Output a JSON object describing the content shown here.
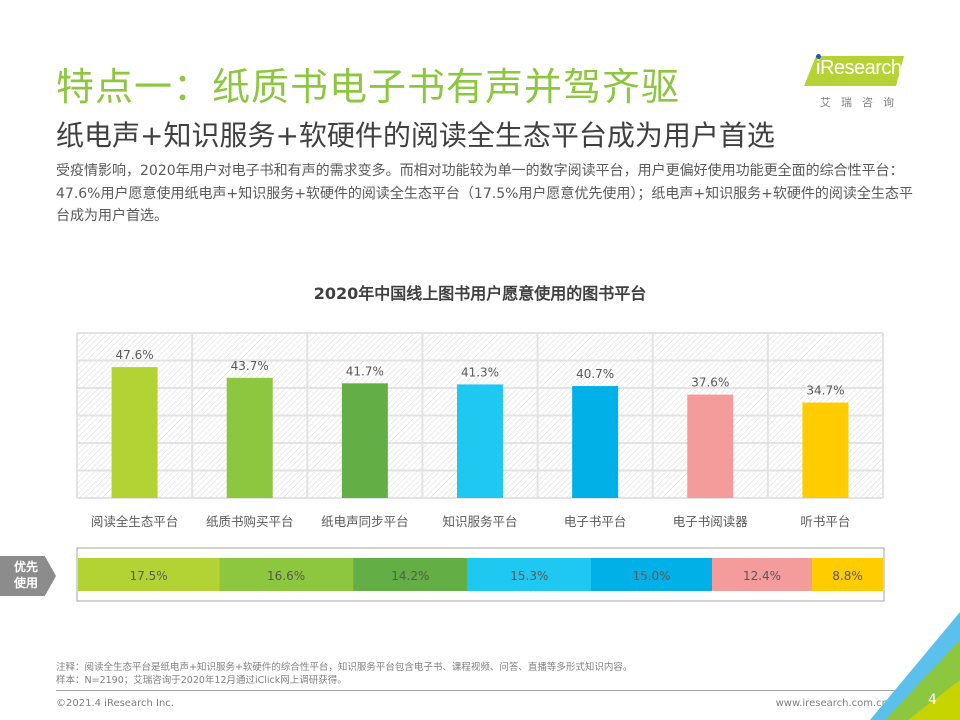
{
  "header": {
    "title": "特点一：纸质书电子书有声并驾齐驱",
    "subtitle": "纸电声+知识服务+软硬件的阅读全生态平台成为用户首选",
    "description": "受疫情影响，2020年用户对电子书和有声的需求变多。而相对功能较为单一的数字阅读平台，用户更偏好使用功能更全面的综合性平台：47.6%用户愿意使用纸电声+知识服务+软硬件的阅读全生态平台（17.5%用户愿意优先使用）；纸电声+知识服务+软硬件的阅读全生态平台成为用户首选。"
  },
  "logo": {
    "brand": "iResearch",
    "cn": "艾瑞咨询"
  },
  "priority_tag": "优先使用",
  "chart_data": [
    {
      "type": "bar",
      "title": "2020年中国线上图书用户愿意使用的图书平台",
      "categories": [
        "阅读全生态平台",
        "纸质书购买平台",
        "纸电声同步平台",
        "知识服务平台",
        "电子书平台",
        "电子书阅读器",
        "听书平台"
      ],
      "values": [
        47.6,
        43.7,
        41.7,
        41.3,
        40.7,
        37.6,
        34.7
      ],
      "value_labels": [
        "47.6%",
        "43.7%",
        "41.7%",
        "41.3%",
        "40.7%",
        "37.6%",
        "34.7%"
      ],
      "colors": [
        "#B3D335",
        "#8DC63F",
        "#63AE45",
        "#1FC8F0",
        "#00B0E6",
        "#F49B9B",
        "#FFCC00"
      ],
      "xlabel": "",
      "ylabel": "",
      "ylim": [
        0,
        60
      ],
      "ytick_step": 10,
      "grid": true,
      "legend": "none"
    },
    {
      "type": "bar",
      "stacked": true,
      "orientation": "horizontal",
      "title": "优先使用",
      "categories": [
        "阅读全生态平台",
        "纸质书购买平台",
        "纸电声同步平台",
        "知识服务平台",
        "电子书平台",
        "电子书阅读器",
        "听书平台"
      ],
      "values": [
        17.5,
        16.6,
        14.2,
        15.3,
        15.0,
        12.4,
        8.8
      ],
      "value_labels": [
        "17.5%",
        "16.6%",
        "14.2%",
        "15.3%",
        "15.0%",
        "12.4%",
        "8.8%"
      ],
      "colors": [
        "#B3D335",
        "#8DC63F",
        "#63AE45",
        "#1FC8F0",
        "#00B0E6",
        "#F49B9B",
        "#FFCC00"
      ],
      "xlim": [
        0,
        100
      ]
    }
  ],
  "footer": {
    "note": "注释：阅读全生态平台是纸电声+知识服务+软硬件的综合性平台，知识服务平台包含电子书、课程视频、问答、直播等多形式知识内容。",
    "sample": "样本：N=2190；艾瑞咨询于2020年12月通过iClick网上调研获得。",
    "copyright": "©2021.4 iResearch Inc.",
    "website": "www.iresearch.com.cn",
    "page": "4"
  }
}
